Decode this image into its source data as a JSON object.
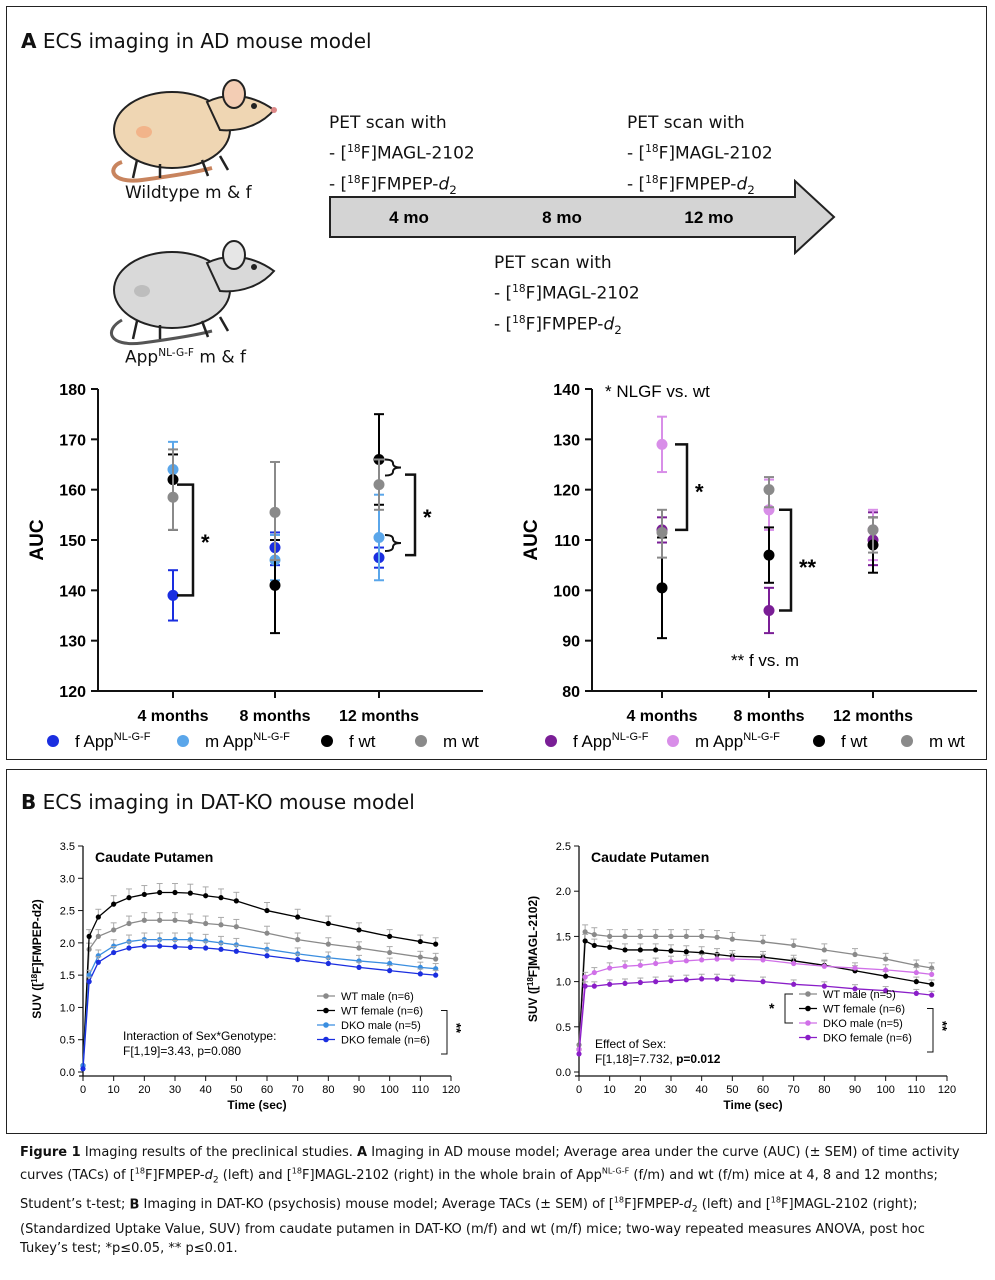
{
  "panelA": {
    "title_letter": "A",
    "title_text": " ECS imaging in AD mouse model",
    "mouse_wt_label": "Wildtype m & f",
    "mouse_app_label_main": "App",
    "mouse_app_label_sup": "NL-G-F",
    "mouse_app_label_tail": " m & f",
    "pet_heading": "PET scan with",
    "tracer1": "- [18F]MAGL-2102",
    "tracer2": "- [18F]FMPEP-d2",
    "timeline": [
      "4 mo",
      "8 mo",
      "12 mo"
    ],
    "left_legend": [
      "f AppNL-G-F",
      "m AppNL-G-F",
      "f wt",
      "m wt"
    ],
    "right_legend": [
      "f AppNL-G-F",
      "m AppNL-G-F",
      "f wt",
      "m wt"
    ],
    "right_annot_top": "* NLGF vs. wt",
    "right_annot_bottom": "** f vs. m",
    "star_single": "*",
    "star_double": "**",
    "colors": {
      "f_app_left": "#1a2ee0",
      "m_app_left": "#5aa6ea",
      "f_wt": "#000000",
      "m_wt": "#8a8a8a",
      "f_app_right": "#7a1e96",
      "m_app_right": "#d88ee8"
    }
  },
  "chart_data": [
    {
      "type": "scatter",
      "ylabel": "AUC",
      "ylim": [
        120,
        180
      ],
      "yticks": [
        120,
        130,
        140,
        150,
        160,
        170,
        180
      ],
      "categories": [
        "4 months",
        "8 months",
        "12 months"
      ],
      "series": [
        {
          "name": "f AppNL-G-F",
          "values": [
            139,
            148.5,
            146.5
          ],
          "err_low": [
            134,
            145,
            144.5
          ],
          "err_high": [
            144,
            151.5,
            148.5
          ]
        },
        {
          "name": "m AppNL-G-F",
          "values": [
            164,
            146,
            150.5
          ],
          "err_low": [
            158.5,
            142,
            142
          ],
          "err_high": [
            169.5,
            151,
            159
          ]
        },
        {
          "name": "f wt",
          "values": [
            162,
            141,
            166
          ],
          "err_low": [
            152,
            131.5,
            157
          ],
          "err_high": [
            167,
            150,
            175
          ]
        },
        {
          "name": "m wt",
          "values": [
            158.5,
            155.5,
            161
          ],
          "err_low": [
            152,
            146,
            156
          ],
          "err_high": [
            168,
            165.5,
            166
          ]
        }
      ]
    },
    {
      "type": "scatter",
      "ylabel": "AUC",
      "ylim": [
        80,
        140
      ],
      "yticks": [
        80,
        90,
        100,
        110,
        120,
        130,
        140
      ],
      "categories": [
        "4 months",
        "8 months",
        "12 months"
      ],
      "series": [
        {
          "name": "f AppNL-G-F",
          "values": [
            112,
            96,
            110
          ],
          "err_low": [
            109.5,
            91.5,
            105
          ],
          "err_high": [
            114.5,
            100.5,
            115.5
          ]
        },
        {
          "name": "m AppNL-G-F",
          "values": [
            129,
            116,
            112
          ],
          "err_low": [
            123.5,
            112,
            106
          ],
          "err_high": [
            134.5,
            122,
            116
          ]
        },
        {
          "name": "f wt",
          "values": [
            100.5,
            107,
            109
          ],
          "err_low": [
            90.5,
            101.5,
            103.5
          ],
          "err_high": [
            110.5,
            112.5,
            114.5
          ]
        },
        {
          "name": "m wt",
          "values": [
            111.5,
            120,
            112
          ],
          "err_low": [
            106.5,
            116.5,
            107.5
          ],
          "err_high": [
            116,
            122.5,
            114.5
          ]
        }
      ]
    },
    {
      "type": "line",
      "title": "Caudate Putamen",
      "xlabel": "Time (sec)",
      "ylabel": "SUV ([18F]FMPEP-d2)",
      "xlim": [
        0,
        120
      ],
      "ylim": [
        0,
        3.5
      ],
      "xticks": [
        0,
        10,
        20,
        30,
        40,
        50,
        60,
        70,
        80,
        90,
        100,
        110,
        120
      ],
      "yticks": [
        "0.0",
        "0.5",
        "1.0",
        "1.5",
        "2.0",
        "2.5",
        "3.0",
        "3.5"
      ],
      "x": [
        0,
        2,
        5,
        10,
        15,
        20,
        25,
        30,
        35,
        40,
        45,
        50,
        60,
        70,
        80,
        90,
        100,
        110,
        115
      ],
      "series": [
        {
          "name": "WT male (n=6)",
          "color": "#8a8a8a",
          "values": [
            0.1,
            1.9,
            2.1,
            2.2,
            2.3,
            2.35,
            2.35,
            2.35,
            2.33,
            2.3,
            2.28,
            2.25,
            2.15,
            2.05,
            1.98,
            1.92,
            1.85,
            1.78,
            1.75
          ]
        },
        {
          "name": "WT female (n=6)",
          "color": "#000000",
          "values": [
            0.1,
            2.1,
            2.4,
            2.6,
            2.7,
            2.75,
            2.78,
            2.78,
            2.77,
            2.73,
            2.7,
            2.65,
            2.5,
            2.4,
            2.3,
            2.2,
            2.1,
            2.02,
            1.98
          ]
        },
        {
          "name": "DKO male (n=5)",
          "color": "#3a8ee0",
          "values": [
            0.1,
            1.5,
            1.8,
            1.95,
            2.02,
            2.05,
            2.05,
            2.05,
            2.05,
            2.03,
            2.0,
            1.97,
            1.9,
            1.83,
            1.77,
            1.72,
            1.68,
            1.62,
            1.6
          ]
        },
        {
          "name": "DKO female (n=6)",
          "color": "#1a2ee0",
          "values": [
            0.05,
            1.4,
            1.7,
            1.85,
            1.92,
            1.95,
            1.95,
            1.94,
            1.93,
            1.92,
            1.9,
            1.87,
            1.8,
            1.74,
            1.68,
            1.62,
            1.57,
            1.52,
            1.5
          ]
        }
      ],
      "annotation_line1": "Interaction of Sex*Genotype:",
      "annotation_line2": "F[1,19]=3.43, p=0.080",
      "legend_star": "**"
    },
    {
      "type": "line",
      "title": "Caudate Putamen",
      "xlabel": "Time (sec)",
      "ylabel": "SUV ([18F]MAGL-2102)",
      "xlim": [
        0,
        120
      ],
      "ylim": [
        0,
        2.5
      ],
      "xticks": [
        0,
        10,
        20,
        30,
        40,
        50,
        60,
        70,
        80,
        90,
        100,
        110,
        120
      ],
      "yticks": [
        "0.0",
        "0.5",
        "1.0",
        "1.5",
        "2.0",
        "2.5"
      ],
      "x": [
        0,
        2,
        5,
        10,
        15,
        20,
        25,
        30,
        35,
        40,
        45,
        50,
        60,
        70,
        80,
        90,
        100,
        110,
        115
      ],
      "series": [
        {
          "name": "WT male (n=5)",
          "color": "#8a8a8a",
          "values": [
            0.3,
            1.55,
            1.52,
            1.5,
            1.5,
            1.5,
            1.5,
            1.5,
            1.5,
            1.5,
            1.49,
            1.47,
            1.44,
            1.4,
            1.35,
            1.3,
            1.25,
            1.18,
            1.15
          ]
        },
        {
          "name": "WT female (n=6)",
          "color": "#000000",
          "values": [
            0.25,
            1.45,
            1.4,
            1.38,
            1.35,
            1.35,
            1.35,
            1.34,
            1.33,
            1.32,
            1.3,
            1.28,
            1.27,
            1.23,
            1.18,
            1.12,
            1.06,
            1.0,
            0.97
          ]
        },
        {
          "name": "DKO male (n=5)",
          "color": "#d070e8",
          "values": [
            0.25,
            1.05,
            1.1,
            1.15,
            1.17,
            1.18,
            1.2,
            1.22,
            1.23,
            1.24,
            1.25,
            1.25,
            1.24,
            1.2,
            1.17,
            1.15,
            1.13,
            1.1,
            1.08
          ]
        },
        {
          "name": "DKO female (n=6)",
          "color": "#8a1ec8",
          "values": [
            0.2,
            0.95,
            0.95,
            0.97,
            0.98,
            0.99,
            1.0,
            1.01,
            1.02,
            1.03,
            1.03,
            1.02,
            1.0,
            0.97,
            0.95,
            0.92,
            0.9,
            0.87,
            0.85
          ]
        }
      ],
      "annotation_line1": "Effect of Sex:",
      "annotation_line2": "F[1,18]=7.732, ",
      "annotation_line2_bold": "p=0.012",
      "legend_star_left": "*",
      "legend_star_right": "**"
    }
  ],
  "panelB": {
    "title_letter": "B",
    "title_text": " ECS imaging in DAT-KO mouse model"
  },
  "caption": {
    "fig_label": "Figure 1",
    "text_1": " Imaging results of the preclinical studies. ",
    "a_label": "A",
    "text_2": " Imaging in AD mouse model; Average area under the curve (AUC) (± SEM) of time activity curves (TACs) of [18F]FMPEP-d2 (left) and [18F]MAGL-2102 (right) in the whole brain of AppNL-G-F (f/m) and wt (f/m) mice at 4, 8 and 12 months; Student’s t-test; ",
    "b_label": "B",
    "text_3": " Imaging in DAT-KO (psychosis) mouse model; Average TACs (± SEM) of [18F]FMPEP-d2 (left) and [18F]MAGL-2102 (right); (Standardized Uptake Value, SUV) from caudate putamen in DAT-KO (m/f) and wt (m/f) mice; two-way repeated measures ANOVA, post hoc Tukey’s test; *p≤0.05, ** p≤0.01."
  }
}
